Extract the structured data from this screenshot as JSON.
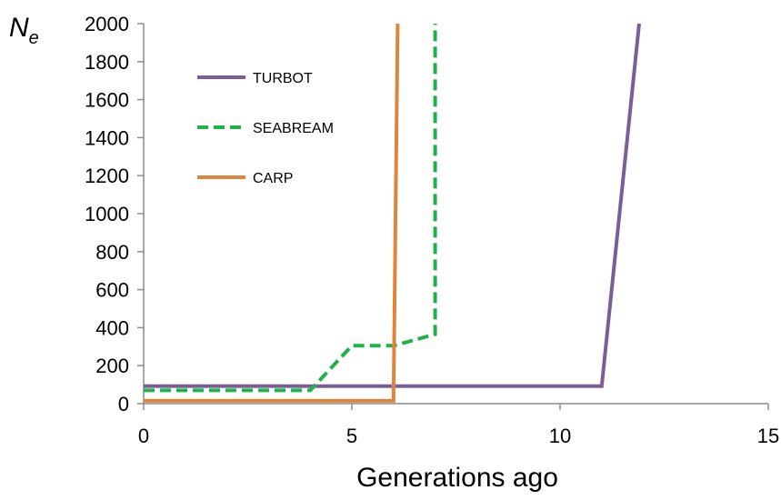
{
  "chart_data": {
    "type": "line",
    "title": "",
    "xlabel": "Generations ago",
    "ylabel": {
      "main": "N",
      "subscript": "e"
    },
    "xlim": [
      0,
      15
    ],
    "ylim": [
      0,
      2000
    ],
    "x_ticks": [
      0,
      5,
      10,
      15
    ],
    "y_ticks": [
      0,
      200,
      400,
      600,
      800,
      1000,
      1200,
      1400,
      1600,
      1800,
      2000
    ],
    "grid": false,
    "legend_position": "top-left",
    "series": [
      {
        "name": "TURBOT",
        "color": "#7b5e98",
        "style": "solid",
        "points": [
          [
            0,
            92
          ],
          [
            11,
            92
          ],
          [
            11.9,
            2000
          ]
        ]
      },
      {
        "name": "SEABREAM",
        "color": "#1fb24a",
        "style": "dashed",
        "points": [
          [
            0,
            70
          ],
          [
            4,
            70
          ],
          [
            5,
            305
          ],
          [
            6,
            305
          ],
          [
            7,
            365
          ],
          [
            7,
            2000
          ]
        ]
      },
      {
        "name": "CARP",
        "color": "#e0843c",
        "style": "solid",
        "points": [
          [
            0,
            15
          ],
          [
            6,
            15
          ],
          [
            6.1,
            2000
          ]
        ]
      }
    ]
  }
}
